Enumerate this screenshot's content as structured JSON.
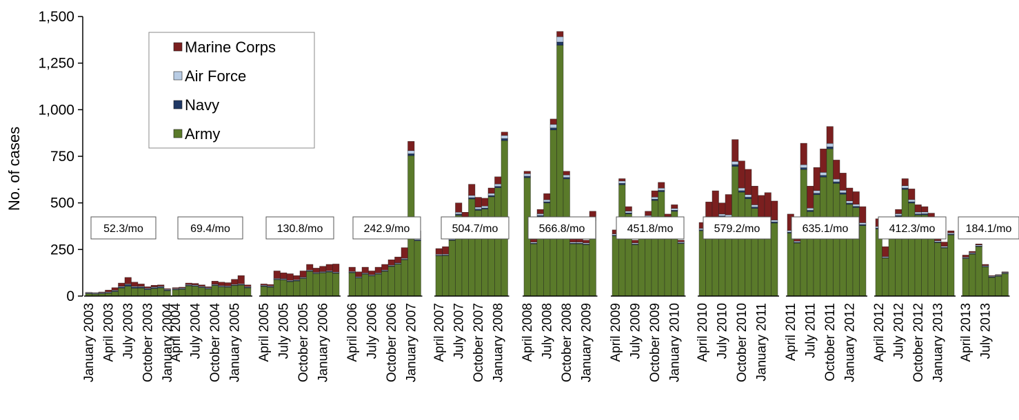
{
  "chart_data": {
    "type": "bar",
    "stacked": true,
    "ylabel": "No. of cases",
    "xlabel": "",
    "ylim": [
      0,
      1500
    ],
    "yticks": [
      0,
      250,
      500,
      750,
      1000,
      1250,
      1500
    ],
    "ytick_labels": [
      "0",
      "250",
      "500",
      "750",
      "1,000",
      "1,250",
      "1,500"
    ],
    "legend_position": "top-left",
    "legend": [
      "Marine Corps",
      "Air Force",
      "Navy",
      "Army"
    ],
    "colors": {
      "Army": "#5a7a2a",
      "Navy": "#1f3864",
      "Air Force": "#b8cce4",
      "Marine Corps": "#7b1f1f"
    },
    "years": [
      2003,
      2004,
      2005,
      2006,
      2007,
      2008,
      2009,
      2010,
      2011,
      2012,
      2013
    ],
    "x_tick_labels": [
      "January 2003",
      "April 2003",
      "July 2003",
      "October 2003",
      "January 2004",
      "April 2004",
      "July 2004",
      "October 2004",
      "January 2005",
      "April 2005",
      "July 2005",
      "October 2005",
      "January 2006",
      "April 2006",
      "July 2006",
      "October 2006",
      "January 2007",
      "April 2007",
      "July 2007",
      "October 2007",
      "January 2008",
      "April 2008",
      "July 2008",
      "October 2008",
      "January 2009",
      "April 2009",
      "July 2009",
      "October 2009",
      "January 2010",
      "April 2010",
      "July 2010",
      "October 2010",
      "January 2011",
      "April 2011",
      "July 2011",
      "October 2011",
      "January 2012",
      "April 2012",
      "July 2012",
      "October 2012",
      "January 2013",
      "April 2013",
      "July 2013"
    ],
    "annotations": [
      {
        "year": 2003,
        "text": "52.3/mo"
      },
      {
        "year": 2004,
        "text": "69.4/mo"
      },
      {
        "year": 2005,
        "text": "130.8/mo"
      },
      {
        "year": 2006,
        "text": "242.9/mo"
      },
      {
        "year": 2007,
        "text": "504.7/mo"
      },
      {
        "year": 2008,
        "text": "566.8/mo"
      },
      {
        "year": 2009,
        "text": "451.8/mo"
      },
      {
        "year": 2010,
        "text": "579.2/mo"
      },
      {
        "year": 2011,
        "text": "635.1/mo"
      },
      {
        "year": 2012,
        "text": "412.3/mo"
      },
      {
        "year": 2013,
        "text": "184.1/mo"
      }
    ],
    "totals": [
      [
        20,
        18,
        22,
        32,
        45,
        70,
        100,
        75,
        65,
        50,
        58,
        60,
        40
      ],
      [
        45,
        48,
        70,
        68,
        60,
        50,
        80,
        75,
        72,
        90,
        110,
        60
      ],
      [
        65,
        62,
        135,
        125,
        120,
        110,
        135,
        170,
        150,
        160,
        170,
        172
      ],
      [
        155,
        130,
        155,
        135,
        155,
        170,
        195,
        210,
        260,
        830,
        350
      ],
      [
        255,
        265,
        325,
        500,
        450,
        600,
        530,
        525,
        580,
        640,
        880
      ],
      [
        670,
        305,
        465,
        550,
        950,
        1420,
        670,
        305,
        305,
        300,
        455
      ],
      [
        355,
        630,
        480,
        300,
        370,
        455,
        565,
        610,
        440,
        490,
        300
      ],
      [
        395,
        505,
        565,
        500,
        545,
        840,
        725,
        680,
        590,
        540,
        555,
        510
      ],
      [
        440,
        310,
        820,
        590,
        690,
        790,
        910,
        730,
        660,
        580,
        560,
        480
      ],
      [
        415,
        265,
        420,
        465,
        630,
        575,
        490,
        480,
        445,
        330,
        290,
        350
      ],
      [
        220,
        240,
        280,
        170,
        110,
        115,
        130
      ]
    ],
    "marine_share": [
      [
        0.1,
        0.1,
        0.15,
        0.3,
        0.3,
        0.25,
        0.35,
        0.3,
        0.2,
        0.15,
        0.15,
        0.12,
        0.1
      ],
      [
        0.1,
        0.1,
        0.12,
        0.12,
        0.12,
        0.1,
        0.2,
        0.25,
        0.25,
        0.3,
        0.4,
        0.15
      ],
      [
        0.1,
        0.12,
        0.3,
        0.25,
        0.3,
        0.2,
        0.25,
        0.18,
        0.15,
        0.18,
        0.2,
        0.25
      ],
      [
        0.15,
        0.2,
        0.2,
        0.15,
        0.2,
        0.18,
        0.15,
        0.15,
        0.22,
        0.06,
        0.12
      ],
      [
        0.12,
        0.15,
        0.05,
        0.1,
        0.08,
        0.1,
        0.1,
        0.08,
        0.05,
        0.06,
        0.02
      ],
      [
        0.02,
        0.05,
        0.05,
        0.06,
        0.03,
        0.02,
        0.03,
        0.05,
        0.05,
        0.05,
        0.08
      ],
      [
        0.06,
        0.02,
        0.05,
        0.05,
        0.04,
        0.05,
        0.06,
        0.05,
        0.03,
        0.04,
        0.03
      ],
      [
        0.08,
        0.22,
        0.25,
        0.12,
        0.2,
        0.14,
        0.2,
        0.2,
        0.17,
        0.22,
        0.24,
        0.2
      ],
      [
        0.2,
        0.05,
        0.14,
        0.2,
        0.18,
        0.16,
        0.1,
        0.14,
        0.14,
        0.12,
        0.12,
        0.18
      ],
      [
        0.1,
        0.2,
        0.12,
        0.05,
        0.06,
        0.1,
        0.08,
        0.06,
        0.05,
        0.1,
        0.08,
        0.03
      ],
      [
        0.05,
        0.03,
        0.02,
        0.04,
        0.03,
        0.02,
        0.02
      ]
    ]
  }
}
